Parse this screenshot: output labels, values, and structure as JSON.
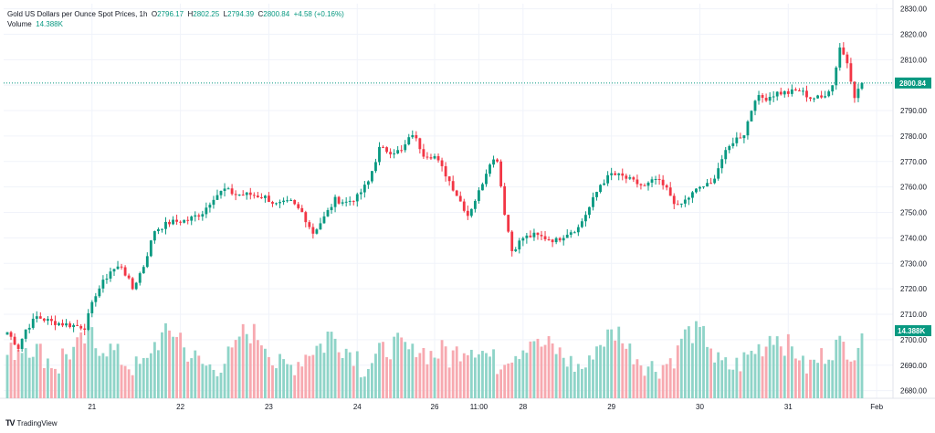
{
  "legend": {
    "symbol": "Gold US Dollars per Ounce Spot Prices",
    "interval": "1h",
    "open_label": "O",
    "open": "2796.17",
    "high_label": "H",
    "high": "2802.25",
    "low_label": "L",
    "low": "2794.39",
    "close_label": "C",
    "close": "2800.84",
    "change": "+4.58 (+0.16%)",
    "volume_label": "Volume",
    "volume": "14.388K"
  },
  "brand": {
    "logo": "TV",
    "name": "TradingView"
  },
  "colors": {
    "up": "#089981",
    "down": "#f23645",
    "up_vol": "#8fd4c8",
    "down_vol": "#f7a9b0",
    "grid": "#f0f3fa",
    "text": "#131722"
  },
  "chart_data": {
    "type": "candlestick",
    "ylim": [
      2677,
      2832
    ],
    "yticks": [
      2680,
      2690,
      2700,
      2710,
      2720,
      2730,
      2740,
      2750,
      2760,
      2770,
      2780,
      2790,
      2800,
      2810,
      2820,
      2830
    ],
    "xticks": [
      "21",
      "22",
      "23",
      "24",
      "26",
      "11:00",
      "28",
      "29",
      "30",
      "31",
      "Feb"
    ],
    "last_price_label": "2800.84",
    "last_volume_label": "14.388K",
    "price_anchors": [
      [
        0,
        2703
      ],
      [
        3,
        2697
      ],
      [
        5,
        2704
      ],
      [
        8,
        2709
      ],
      [
        12,
        2707
      ],
      [
        16,
        2706
      ],
      [
        21,
        2705
      ],
      [
        24,
        2718
      ],
      [
        28,
        2727
      ],
      [
        31,
        2729
      ],
      [
        34,
        2720
      ],
      [
        37,
        2729
      ],
      [
        40,
        2743
      ],
      [
        44,
        2746
      ],
      [
        49,
        2747
      ],
      [
        53,
        2750
      ],
      [
        56,
        2756
      ],
      [
        59,
        2759
      ],
      [
        62,
        2757
      ],
      [
        66,
        2757
      ],
      [
        70,
        2756
      ],
      [
        73,
        2753
      ],
      [
        77,
        2754
      ],
      [
        80,
        2750
      ],
      [
        83,
        2742
      ],
      [
        86,
        2748
      ],
      [
        89,
        2755
      ],
      [
        92,
        2754
      ],
      [
        95,
        2756
      ],
      [
        98,
        2762
      ],
      [
        101,
        2775
      ],
      [
        104,
        2774
      ],
      [
        107,
        2774
      ],
      [
        110,
        2781
      ],
      [
        113,
        2773
      ],
      [
        116,
        2772
      ],
      [
        119,
        2765
      ],
      [
        122,
        2757
      ],
      [
        125,
        2749
      ],
      [
        128,
        2758
      ],
      [
        131,
        2770
      ],
      [
        133,
        2771
      ],
      [
        135,
        2750
      ],
      [
        137,
        2735
      ],
      [
        140,
        2740
      ],
      [
        143,
        2741
      ],
      [
        146,
        2740
      ],
      [
        149,
        2739
      ],
      [
        152,
        2742
      ],
      [
        155,
        2744
      ],
      [
        158,
        2752
      ],
      [
        161,
        2761
      ],
      [
        164,
        2765
      ],
      [
        167,
        2764
      ],
      [
        170,
        2762
      ],
      [
        173,
        2760
      ],
      [
        176,
        2763
      ],
      [
        179,
        2759
      ],
      [
        182,
        2752
      ],
      [
        185,
        2756
      ],
      [
        188,
        2760
      ],
      [
        191,
        2761
      ],
      [
        194,
        2771
      ],
      [
        197,
        2778
      ],
      [
        200,
        2781
      ],
      [
        203,
        2795
      ],
      [
        206,
        2795
      ],
      [
        209,
        2797
      ],
      [
        212,
        2797
      ],
      [
        215,
        2798
      ],
      [
        218,
        2795
      ],
      [
        221,
        2795
      ],
      [
        224,
        2800
      ],
      [
        226,
        2815
      ],
      [
        228,
        2809
      ],
      [
        230,
        2796
      ],
      [
        232,
        2800
      ]
    ]
  }
}
